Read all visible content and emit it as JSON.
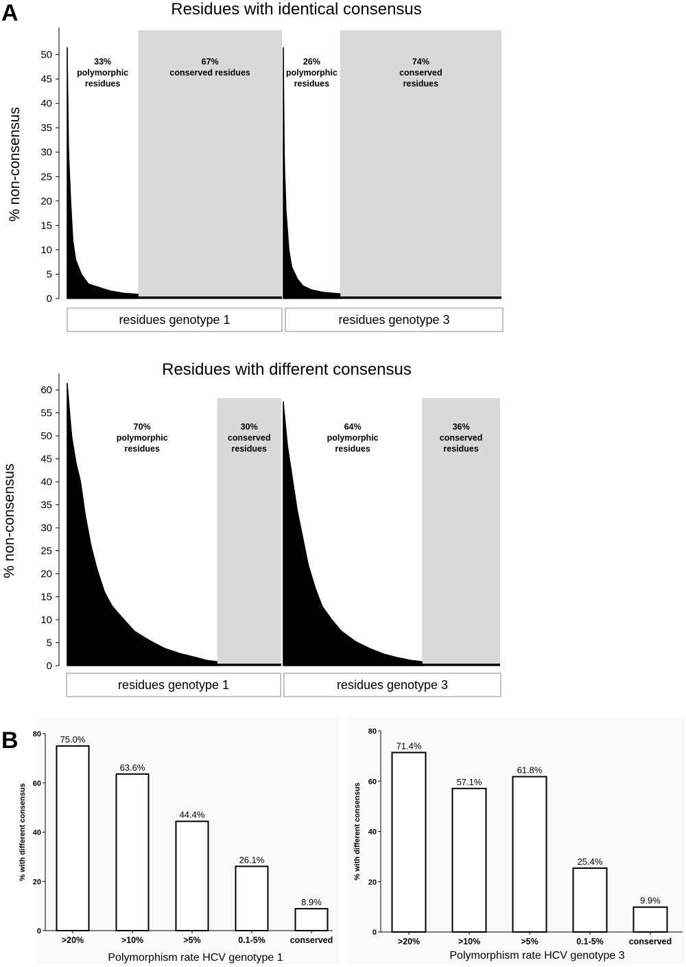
{
  "panel_labels": {
    "a": "A",
    "b": "B"
  },
  "chart_data": [
    {
      "id": "top",
      "type": "bar",
      "title": "Residues with identical consensus",
      "ylabel": "% non-consensus",
      "ylim": [
        0,
        55
      ],
      "yticks": [
        0,
        5,
        10,
        15,
        20,
        25,
        30,
        35,
        40,
        45,
        50
      ],
      "groups": [
        {
          "label": "residues genotype 1",
          "polymorphic_fraction": 0.33,
          "max_value": 51.5,
          "decay_profile": [
            [
              0,
              51.5
            ],
            [
              0.02,
              30
            ],
            [
              0.05,
              20
            ],
            [
              0.08,
              12
            ],
            [
              0.12,
              8
            ],
            [
              0.2,
              5
            ],
            [
              0.3,
              3
            ],
            [
              0.45,
              2.3
            ],
            [
              0.6,
              1.6
            ],
            [
              0.8,
              1.1
            ],
            [
              1,
              0.9
            ]
          ],
          "annotations": [
            {
              "region": "polymorphic",
              "lines": [
                "33%",
                "polymorphic",
                "residues"
              ]
            },
            {
              "region": "conserved",
              "lines": [
                "67%",
                "conserved residues"
              ]
            }
          ]
        },
        {
          "label": "residues genotype 3",
          "polymorphic_fraction": 0.26,
          "max_value": 51.5,
          "decay_profile": [
            [
              0,
              51.5
            ],
            [
              0.02,
              28
            ],
            [
              0.05,
              18
            ],
            [
              0.1,
              10
            ],
            [
              0.15,
              6.5
            ],
            [
              0.25,
              4
            ],
            [
              0.35,
              2.6
            ],
            [
              0.5,
              1.8
            ],
            [
              0.7,
              1.3
            ],
            [
              1,
              1.0
            ]
          ],
          "annotations": [
            {
              "region": "polymorphic",
              "lines": [
                "26%",
                "polymorphic",
                "residues"
              ]
            },
            {
              "region": "conserved",
              "lines": [
                "74%",
                "conserved",
                "residues"
              ]
            }
          ]
        }
      ]
    },
    {
      "id": "middle",
      "type": "bar",
      "title": "Residues with different consensus",
      "ylabel": "% non-consensus",
      "ylim": [
        0,
        63
      ],
      "yticks": [
        0,
        5,
        10,
        15,
        20,
        25,
        30,
        35,
        40,
        45,
        50,
        55,
        60
      ],
      "groups": [
        {
          "label": "residues genotype 1",
          "polymorphic_fraction": 0.7,
          "max_value": 61.5,
          "decay_profile": [
            [
              0,
              61.5
            ],
            [
              0.03,
              50
            ],
            [
              0.06,
              44
            ],
            [
              0.09,
              40
            ],
            [
              0.12,
              33
            ],
            [
              0.16,
              26
            ],
            [
              0.2,
              21
            ],
            [
              0.25,
              16
            ],
            [
              0.3,
              13
            ],
            [
              0.38,
              10
            ],
            [
              0.45,
              7.5
            ],
            [
              0.55,
              5.5
            ],
            [
              0.65,
              3.8
            ],
            [
              0.75,
              2.7
            ],
            [
              0.85,
              1.9
            ],
            [
              0.93,
              1.2
            ],
            [
              1,
              0.9
            ]
          ],
          "annotations": [
            {
              "region": "polymorphic",
              "lines": [
                "70%",
                "polymorphic",
                "residues"
              ]
            },
            {
              "region": "conserved",
              "lines": [
                "30%",
                "conserved",
                "residues"
              ]
            }
          ]
        },
        {
          "label": "residues genotype 3",
          "polymorphic_fraction": 0.64,
          "max_value": 57.5,
          "decay_profile": [
            [
              0,
              57.5
            ],
            [
              0.03,
              48
            ],
            [
              0.07,
              40
            ],
            [
              0.1,
              34
            ],
            [
              0.14,
              28
            ],
            [
              0.18,
              22
            ],
            [
              0.23,
              17
            ],
            [
              0.28,
              13
            ],
            [
              0.35,
              10
            ],
            [
              0.42,
              7.5
            ],
            [
              0.52,
              5.3
            ],
            [
              0.62,
              3.8
            ],
            [
              0.72,
              2.6
            ],
            [
              0.82,
              1.8
            ],
            [
              0.92,
              1.2
            ],
            [
              1,
              0.9
            ]
          ],
          "annotations": [
            {
              "region": "polymorphic",
              "lines": [
                "64%",
                "polymorphic",
                "residues"
              ]
            },
            {
              "region": "conserved",
              "lines": [
                "36%",
                "conserved",
                "residues"
              ]
            }
          ]
        }
      ]
    },
    {
      "id": "b-left",
      "type": "bar",
      "categories": [
        ">20%",
        ">10%",
        ">5%",
        "0.1-5%",
        "conserved"
      ],
      "values": [
        75.0,
        63.6,
        44.4,
        26.1,
        8.9
      ],
      "value_labels": [
        "75.0%",
        "63.6%",
        "44.4%",
        "26.1%",
        "8.9%"
      ],
      "xlabel": "Polymorphism rate HCV genotype 1",
      "ylabel": "% with different consensus",
      "ylim": [
        0,
        80
      ],
      "yticks": [
        0,
        20,
        40,
        60,
        80
      ]
    },
    {
      "id": "b-right",
      "type": "bar",
      "categories": [
        ">20%",
        ">10%",
        ">5%",
        "0.1-5%",
        "conserved"
      ],
      "values": [
        71.4,
        57.1,
        61.8,
        25.4,
        9.9
      ],
      "value_labels": [
        "71.4%",
        "57.1%",
        "61.8%",
        "25.4%",
        "9.9%"
      ],
      "xlabel": "Polymorphism rate HCV genotype 3",
      "ylabel": "% with different consensus",
      "ylim": [
        0,
        80
      ],
      "yticks": [
        0,
        20,
        40,
        60,
        80
      ]
    }
  ]
}
